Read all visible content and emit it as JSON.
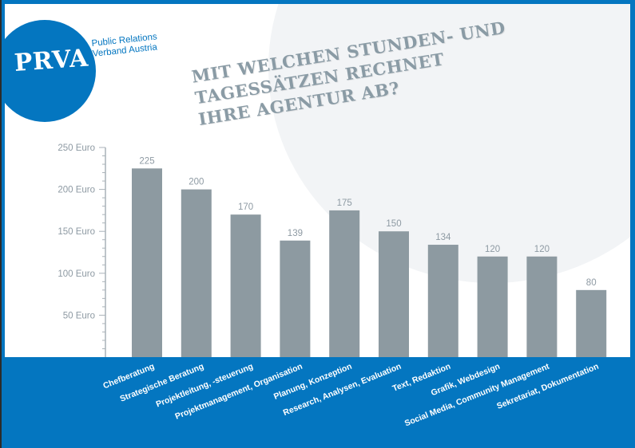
{
  "logo": {
    "abbr": "PRVA",
    "org_line1": "Public Relations",
    "org_line2": "Verband Austria",
    "brand_color": "#0476c0"
  },
  "title_lines": [
    "MIT WELCHEN STUNDEN- UND",
    "TAGESSÄTZEN RECHNET",
    "IHRE AGENTUR AB?"
  ],
  "chart_data": {
    "type": "bar",
    "title": "MIT WELCHEN STUNDEN- UND TAGESSÄTZEN RECHNET IHRE AGENTUR AB?",
    "xlabel": "",
    "ylabel": "",
    "ylim": [
      0,
      250
    ],
    "yticks": [
      50,
      100,
      150,
      200,
      250
    ],
    "ytick_labels": [
      "50 Euro",
      "100 Euro",
      "150 Euro",
      "200 Euro",
      "250 Euro"
    ],
    "minor_tick_step": 10,
    "grid": false,
    "bar_color": "#8d9aa1",
    "categories": [
      "Chefberatung",
      "Strategische Beratung",
      "Projektleitung, -steuerung",
      "Projektmanagement, Organisation",
      "Planung, Konzeption",
      "Research, Analysen, Evaluation",
      "Text, Redaktion",
      "Grafik, Webdesign",
      "Social Media, Community Management",
      "Sekretariat, Dokumentation"
    ],
    "values": [
      225,
      200,
      170,
      139,
      175,
      150,
      134,
      120,
      120,
      80
    ],
    "data_labels": [
      "225",
      "200",
      "170",
      "139",
      "175",
      "150",
      "134",
      "120",
      "120",
      "80"
    ]
  }
}
